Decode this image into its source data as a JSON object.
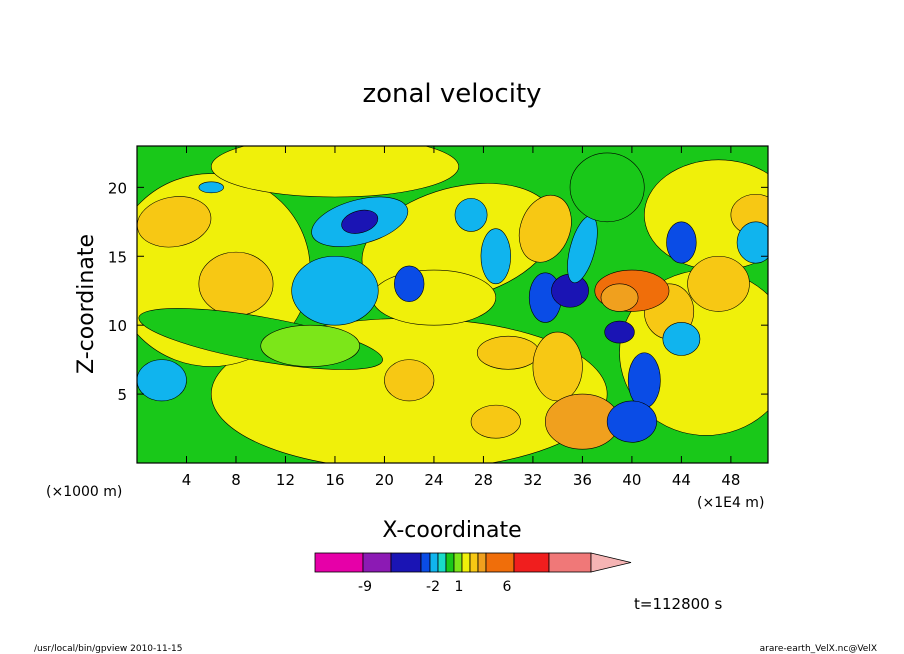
{
  "chart_data": {
    "type": "heatmap",
    "title": "zonal velocity",
    "xlabel": "X-coordinate",
    "ylabel": "Z-coordinate",
    "x_units_note": "(×1000 m)",
    "x_scale_note": "(×1E4 m)",
    "xlim": [
      0,
      51
    ],
    "ylim": [
      0,
      23
    ],
    "x_ticks": [
      4,
      8,
      12,
      16,
      20,
      24,
      28,
      32,
      36,
      40,
      44,
      48
    ],
    "y_ticks": [
      5,
      10,
      15,
      20
    ],
    "grid": false,
    "colorbar": {
      "colors": [
        "#e600a8",
        "#8c1ab4",
        "#1a14b4",
        "#0a4ce6",
        "#10b4ee",
        "#19dcc8",
        "#19c819",
        "#7ce619",
        "#f0f00a",
        "#f7c814",
        "#f0a01e",
        "#f06e0a",
        "#f01e1e",
        "#f07878",
        "#f5b4b4"
      ],
      "tick_labels": [
        "-9",
        "-2",
        "1",
        "6"
      ]
    },
    "annotation_time": "t=112800 s",
    "footer_left": "/usr/local/bin/gpview   2010-11-15",
    "footer_right": "arare-earth_VelX.nc@VelX"
  }
}
